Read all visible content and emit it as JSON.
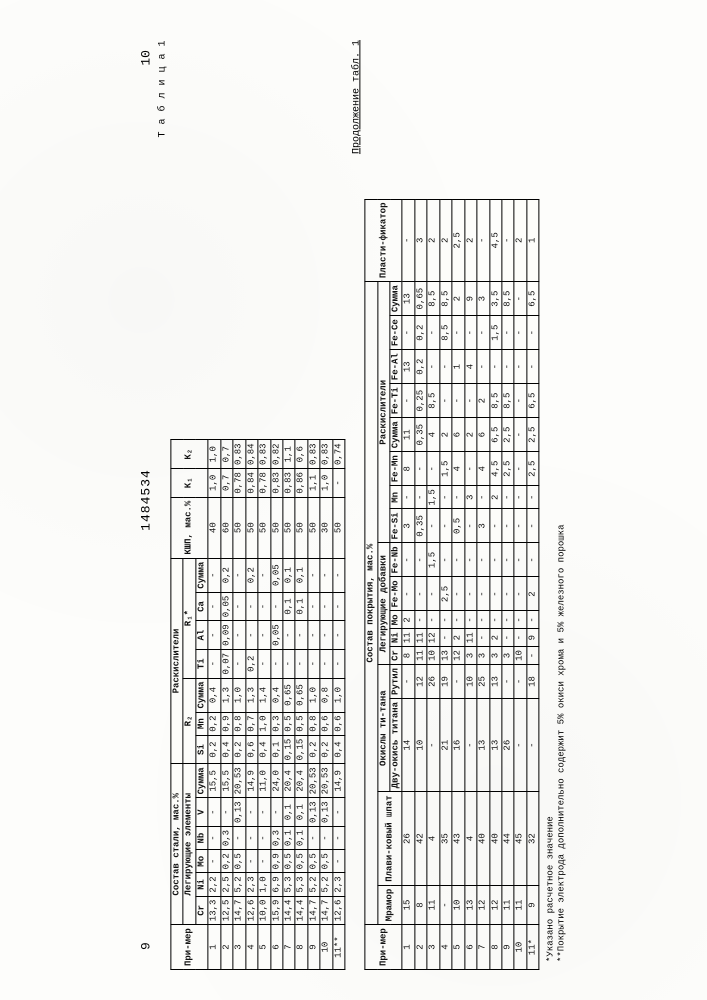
{
  "page_left": "9",
  "doc_number": "1484534",
  "page_right": "10",
  "table1_caption": "Т а б л и ц а 1",
  "cont_caption": "Продолжение  табл. 1",
  "footnote1": "*Указано расчетное значение",
  "footnote2": "**Покрытие электрода дополнительно содержит 5% окиси хрома и 5% железного порошка",
  "t1": {
    "h_primer": "При-мер",
    "h_sostav": "Состав стали, мас.%",
    "h_leg": "Легирующие элементы",
    "h_rask": "Раскислители",
    "h_R2": "R₂",
    "h_R1": "R₁*",
    "h_KIP": "КШП, мас.%",
    "h_K1": "К₁",
    "h_K2": "К₂",
    "cols_leg": [
      "Cr",
      "Ni",
      "Mo",
      "Nb",
      "V",
      "Сумма"
    ],
    "cols_r2": [
      "Si",
      "Mn",
      "Сумма"
    ],
    "cols_r1": [
      "Ti",
      "Al",
      "Ca",
      "Сумма"
    ],
    "rows": [
      {
        "n": "1",
        "Cr": "13,3",
        "Ni": "2,2",
        "Mo": "-",
        "Nb": "-",
        "V": "-",
        "Sum": "15,5",
        "Si": "0,2",
        "Mn": "0,2",
        "R2": "0,4",
        "Ti": "-",
        "Al": "-",
        "Ca": "-",
        "R1": "-",
        "KIP": "40",
        "K1": "1,0",
        "K2": "1,0"
      },
      {
        "n": "2",
        "Cr": "12,5",
        "Ni": "2,5",
        "Mo": "0,2",
        "Nb": "0,3",
        "V": "-",
        "Sum": "15,5",
        "Si": "0,4",
        "Mn": "0,9",
        "R2": "1,3",
        "Ti": "0,07",
        "Al": "0,09",
        "Ca": "0,05",
        "R1": "0,2",
        "KIP": "60",
        "K1": "0,7",
        "K2": "0,7"
      },
      {
        "n": "3",
        "Cr": "14,7",
        "Ni": "5,2",
        "Mo": "0,5",
        "Nb": "-",
        "V": "0,13",
        "Sum": "20,53",
        "Si": "0,2",
        "Mn": "0,8",
        "R2": "1,0",
        "Ti": "-",
        "Al": "-",
        "Ca": "-",
        "R1": "-",
        "KIP": "50",
        "K1": "0,78",
        "K2": "0,83"
      },
      {
        "n": "4",
        "Cr": "12,6",
        "Ni": "2,3",
        "Mo": "-",
        "Nb": "-",
        "V": "-",
        "Sum": "14,9",
        "Si": "0,6",
        "Mn": "0,7",
        "R2": "1,3",
        "Ti": "0,2",
        "Al": "-",
        "Ca": "-",
        "R1": "0,2",
        "KIP": "50",
        "K1": "0,84",
        "K2": "0,84"
      },
      {
        "n": "5",
        "Cr": "10,0",
        "Ni": "1,0",
        "Mo": "-",
        "Nb": "-",
        "V": "-",
        "Sum": "11,0",
        "Si": "0,4",
        "Mn": "1,0",
        "R2": "1,4",
        "Ti": "-",
        "Al": "-",
        "Ca": "-",
        "R1": "-",
        "KIP": "50",
        "K1": "0,78",
        "K2": "0,83"
      },
      {
        "n": "6",
        "Cr": "15,9",
        "Ni": "6,9",
        "Mo": "0,9",
        "Nb": "0,3",
        "V": "-",
        "Sum": "24,0",
        "Si": "0,1",
        "Mn": "0,3",
        "R2": "0,4",
        "Ti": "-",
        "Al": "0,05",
        "Ca": "-",
        "R1": "0,05",
        "KIP": "50",
        "K1": "0,83",
        "K2": "0,82"
      },
      {
        "n": "7",
        "Cr": "14,4",
        "Ni": "5,3",
        "Mo": "0,5",
        "Nb": "0,1",
        "V": "0,1",
        "Sum": "20,4",
        "Si": "0,15",
        "Mn": "0,5",
        "R2": "0,65",
        "Ti": "-",
        "Al": "-",
        "Ca": "0,1",
        "R1": "0,1",
        "KIP": "50",
        "K1": "0,83",
        "K2": "1,1"
      },
      {
        "n": "8",
        "Cr": "14,4",
        "Ni": "5,3",
        "Mo": "0,5",
        "Nb": "0,1",
        "V": "0,1",
        "Sum": "20,4",
        "Si": "0,15",
        "Mn": "0,5",
        "R2": "0,65",
        "Ti": "-",
        "Al": "-",
        "Ca": "0,1",
        "R1": "0,1",
        "KIP": "50",
        "K1": "0,86",
        "K2": "0,6"
      },
      {
        "n": "9",
        "Cr": "14,7",
        "Ni": "5,2",
        "Mo": "0,5",
        "Nb": "-",
        "V": "0,13",
        "Sum": "20,53",
        "Si": "0,2",
        "Mn": "0,8",
        "R2": "1,0",
        "Ti": "-",
        "Al": "-",
        "Ca": "-",
        "R1": "-",
        "KIP": "50",
        "K1": "1,1",
        "K2": "0,83"
      },
      {
        "n": "10",
        "Cr": "14,7",
        "Ni": "5,2",
        "Mo": "0,5",
        "Nb": "-",
        "V": "0,13",
        "Sum": "20,53",
        "Si": "0,2",
        "Mn": "0,6",
        "R2": "0,8",
        "Ti": "-",
        "Al": "-",
        "Ca": "-",
        "R1": "-",
        "KIP": "30",
        "K1": "1,0",
        "K2": "0,83"
      },
      {
        "n": "11**",
        "Cr": "12,6",
        "Ni": "2,3",
        "Mo": "-",
        "Nb": "-",
        "V": "-",
        "Sum": "14,9",
        "Si": "0,4",
        "Mn": "0,6",
        "R2": "1,0",
        "Ti": "-",
        "Al": "-",
        "Ca": "-",
        "R1": "-",
        "KIP": "50",
        "K1": "-",
        "K2": "0,74"
      }
    ]
  },
  "t2": {
    "h_primer": "При-мер",
    "h_sostav": "Состав покрытия, мас.%",
    "h_mramor": "Мрамор",
    "h_plav": "Плави-ковый шпат",
    "h_oxti": "Окислы ти-тана",
    "h_dvu": "Дву-окись титана",
    "h_rutil": "Рутил",
    "h_leg": "Легирующие добавки",
    "h_rask": "Раскислители",
    "h_R2": "R₂",
    "h_R1": "R₁",
    "h_plast": "Пласти-фикатор",
    "cols_leg": [
      "Cr",
      "Ni",
      "Mo",
      "Fe-Mo",
      "Fe-Nb"
    ],
    "cols_r2": [
      "Fe-Si",
      "Mn",
      "Fe-Mn",
      "Сумма"
    ],
    "cols_r1": [
      "Fe-Ti",
      "Fe-Al",
      "Fe-Ce",
      "Сумма"
    ],
    "rows": [
      {
        "n": "1",
        "Mr": "15",
        "Pl": "26",
        "Dv": "14",
        "Ru": "-",
        "Cr": "8",
        "Ni": "11",
        "Mo": "2",
        "FeMo": "-",
        "FeNb": "-",
        "FeSi": "3",
        "Mn": "-",
        "FeMn": "8",
        "R2": "11",
        "FeTi": "-",
        "FeAl": "13",
        "FeCe": "-",
        "R1": "13",
        "Plast": "-"
      },
      {
        "n": "2",
        "Mr": "8",
        "Pl": "42",
        "Dv": "10",
        "Ru": "12",
        "Cr": "11",
        "Ni": "11",
        "Mo": "-",
        "FeMo": "-",
        "FeNb": "-",
        "FeSi": "0,35",
        "Mn": "-",
        "FeMn": "-",
        "R2": "0,35",
        "FeTi": "0,25",
        "FeAl": "0,2",
        "FeCe": "0,2",
        "R1": "0,65",
        "Plast": "3"
      },
      {
        "n": "3",
        "Mr": "11",
        "Pl": "4",
        "Dv": "-",
        "Ru": "26",
        "Cr": "10",
        "Ni": "12",
        "Mo": "-",
        "FeMo": "-",
        "FeNb": "1,5",
        "FeSi": "-",
        "Mn": "1,5",
        "FeMn": "-",
        "R2": "4",
        "FeTi": "8,5",
        "FeAl": "-",
        "FeCe": "-",
        "R1": "8,5",
        "Plast": "2"
      },
      {
        "n": "4",
        "Mr": "-",
        "Pl": "35",
        "Dv": "21",
        "Ru": "19",
        "Cr": "13",
        "Ni": "-",
        "Mo": "-",
        "FeMo": "2,5",
        "FeNb": "-",
        "FeSi": "-",
        "Mn": "-",
        "FeMn": "1,5",
        "R2": "2",
        "FeTi": "-",
        "FeAl": "-",
        "FeCe": "8,5",
        "R1": "8,5",
        "Plast": "2"
      },
      {
        "n": "5",
        "Mr": "10",
        "Pl": "43",
        "Dv": "16",
        "Ru": "-",
        "Cr": "12",
        "Ni": "2",
        "Mo": "-",
        "FeMo": "-",
        "FeNb": "-",
        "FeSi": "0,5",
        "Mn": "-",
        "FeMn": "4",
        "R2": "6",
        "FeTi": "-",
        "FeAl": "1",
        "FeCe": "-",
        "R1": "2",
        "Plast": "2,5"
      },
      {
        "n": "6",
        "Mr": "13",
        "Pl": "4",
        "Dv": "-",
        "Ru": "10",
        "Cr": "3",
        "Ni": "11",
        "Mo": "-",
        "FeMo": "-",
        "FeNb": "-",
        "FeSi": "-",
        "Mn": "3",
        "FeMn": "-",
        "R2": "2",
        "FeTi": "-",
        "FeAl": "4",
        "FeCe": "-",
        "R1": "9",
        "Plast": "2"
      },
      {
        "n": "7",
        "Mr": "12",
        "Pl": "40",
        "Dv": "13",
        "Ru": "25",
        "Cr": "3",
        "Ni": "-",
        "Mo": "-",
        "FeMo": "-",
        "FeNb": "-",
        "FeSi": "3",
        "Mn": "-",
        "FeMn": "4",
        "R2": "6",
        "FeTi": "2",
        "FeAl": "-",
        "FeCe": "-",
        "R1": "3",
        "Plast": "-"
      },
      {
        "n": "8",
        "Mr": "12",
        "Pl": "40",
        "Dv": "13",
        "Ru": "13",
        "Cr": "3",
        "Ni": "2",
        "Mo": "-",
        "FeMo": "-",
        "FeNb": "-",
        "FeSi": "-",
        "Mn": "2",
        "FeMn": "4,5",
        "R2": "6,5",
        "FeTi": "8,5",
        "FeAl": "-",
        "FeCe": "1,5",
        "R1": "3,5",
        "Plast": "4,5"
      },
      {
        "n": "9",
        "Mr": "11",
        "Pl": "44",
        "Dv": "26",
        "Ru": "-",
        "Cr": "3",
        "Ni": "-",
        "Mo": "-",
        "FeMo": "-",
        "FeNb": "-",
        "FeSi": "-",
        "Mn": "-",
        "FeMn": "2,5",
        "R2": "2,5",
        "FeTi": "8,5",
        "FeAl": "-",
        "FeCe": "-",
        "R1": "8,5",
        "Plast": "-"
      },
      {
        "n": "10",
        "Mr": "11",
        "Pl": "45",
        "Dv": "-",
        "Ru": "-",
        "Cr": "10",
        "Ni": "-",
        "Mo": "-",
        "FeMo": "-",
        "FeNb": "-",
        "FeSi": "-",
        "Mn": "-",
        "FeMn": "-",
        "R2": "-",
        "FeTi": "-",
        "FeAl": "-",
        "FeCe": "-",
        "R1": "-",
        "Plast": "2"
      },
      {
        "n": "11*",
        "Mr": "9",
        "Pl": "32",
        "Dv": "-",
        "Ru": "18",
        "Cr": "-",
        "Ni": "9",
        "Mo": "-",
        "FeMo": "2",
        "FeNb": "-",
        "FeSi": "-",
        "Mn": "-",
        "FeMn": "2,5",
        "R2": "2,5",
        "FeTi": "6,5",
        "FeAl": "-",
        "FeCe": "-",
        "R1": "6,5",
        "Plast": "1"
      }
    ]
  }
}
